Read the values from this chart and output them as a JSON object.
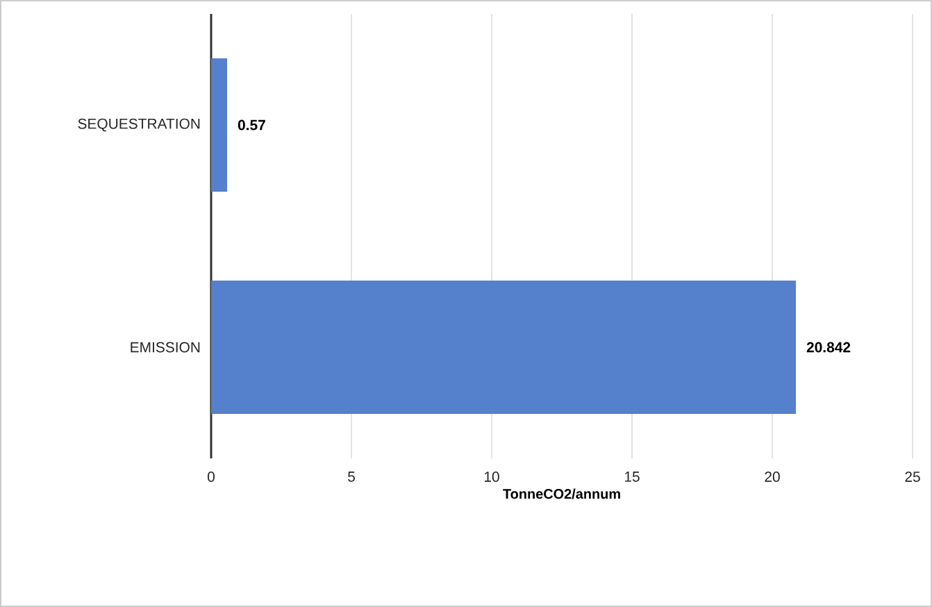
{
  "chart_data": {
    "type": "bar",
    "orientation": "horizontal",
    "categories": [
      "SEQUESTRATION",
      "EMISSION"
    ],
    "values": [
      0.57,
      20.842
    ],
    "color": "#5580cb",
    "xlabel": "TonneCO2/annum",
    "xlim": [
      0,
      25
    ],
    "xticks": [
      0,
      5,
      10,
      15,
      20,
      25
    ],
    "grid": "x",
    "data_labels": true
  }
}
